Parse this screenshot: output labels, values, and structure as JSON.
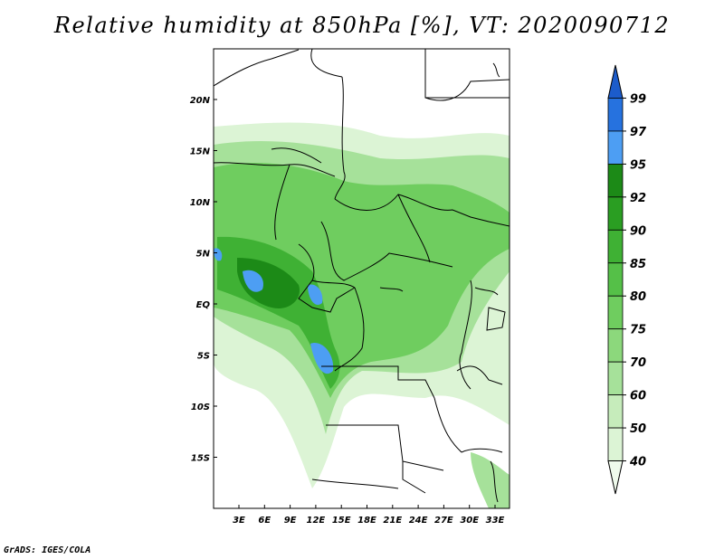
{
  "title": "Relative humidity at 850hPa [%], VT: 2020090712",
  "footer": "GrADS: IGES/COLA",
  "map": {
    "lat_labels": [
      "20N",
      "15N",
      "10N",
      "5N",
      "EQ",
      "5S",
      "10S",
      "15S"
    ],
    "lon_labels": [
      "3E",
      "6E",
      "9E",
      "12E",
      "15E",
      "18E",
      "21E",
      "24E",
      "27E",
      "30E",
      "33E"
    ]
  },
  "colorbar": {
    "levels": [
      "40",
      "50",
      "60",
      "70",
      "75",
      "80",
      "85",
      "90",
      "92",
      "95",
      "97",
      "99"
    ],
    "colors": [
      "#effaec",
      "#dcf4d5",
      "#c6ecbb",
      "#a6e19a",
      "#8cd87c",
      "#6fcd5f",
      "#55c048",
      "#3fb134",
      "#2a9e22",
      "#1c8a17",
      "#4d9ef3",
      "#2672df",
      "#1c5ccb"
    ]
  }
}
